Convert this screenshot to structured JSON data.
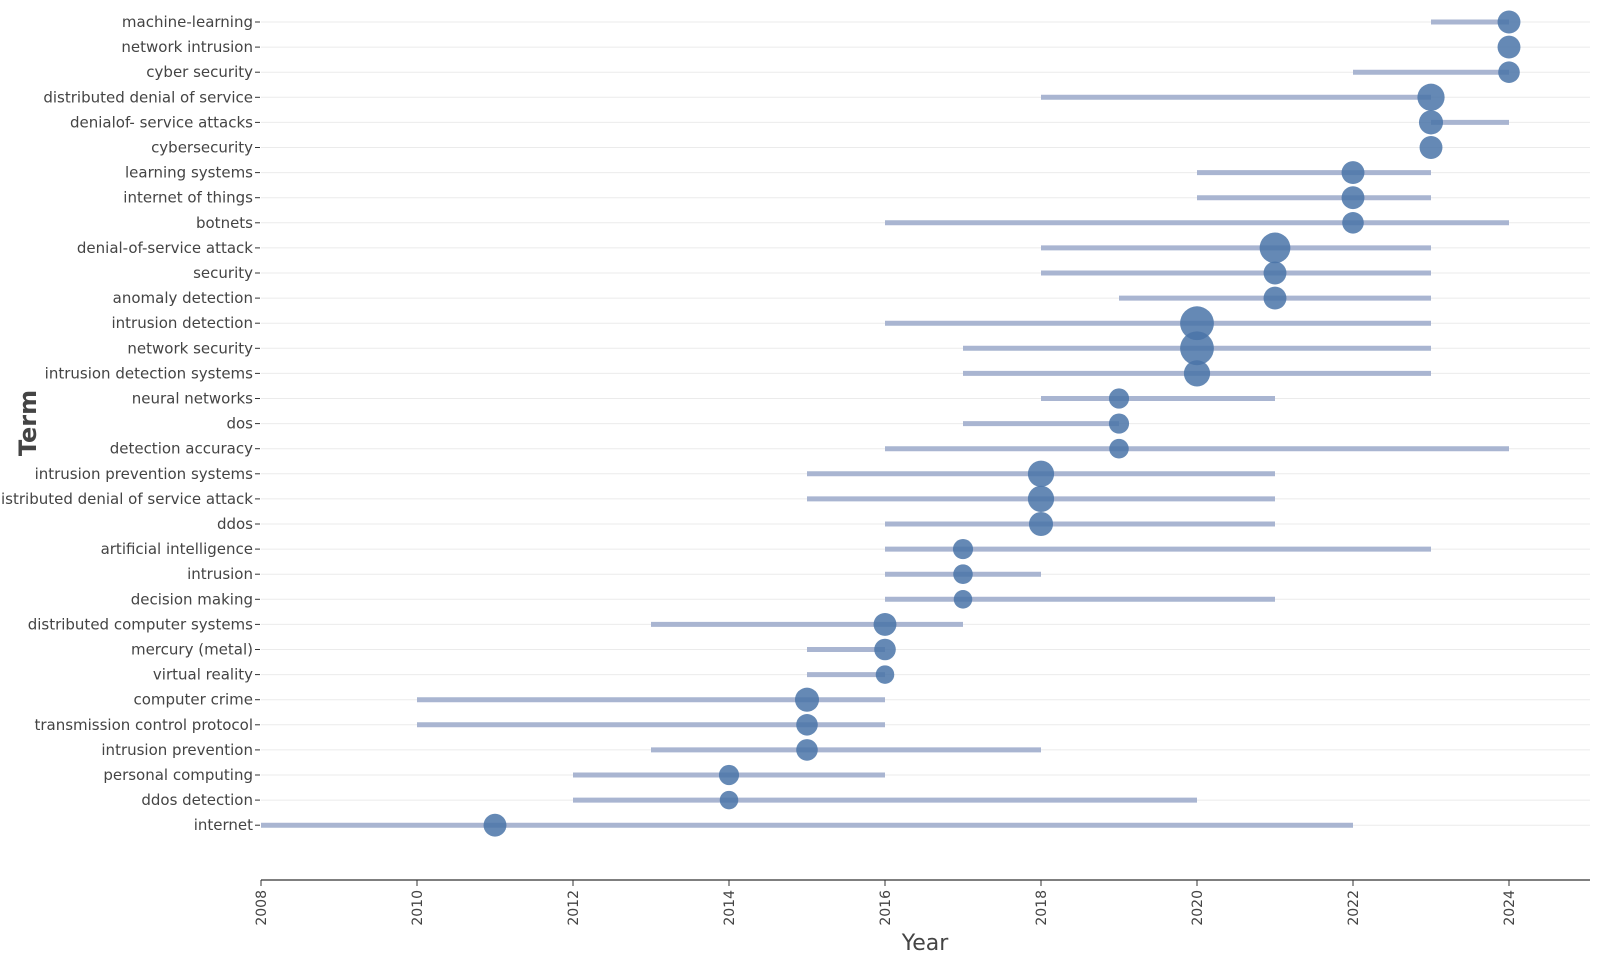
{
  "chart_data": {
    "type": "scatter",
    "xlabel": "Year",
    "ylabel": "Term",
    "xlim": [
      2008,
      2025
    ],
    "x_ticks": [
      "2008",
      "2010",
      "2012",
      "2014",
      "2016",
      "2018",
      "2020",
      "2022",
      "2024"
    ],
    "grid": true,
    "legend": "none",
    "colors": {
      "point": "#4a74a8",
      "range": "#a9b5d1",
      "grid": "#ebebeb",
      "axis": "#333333"
    },
    "terms": [
      {
        "term": "machine-learning",
        "start": 2023,
        "end": 2024,
        "peak": 2024,
        "freq": 3
      },
      {
        "term": "network intrusion",
        "start": 2024,
        "end": 2024,
        "peak": 2024,
        "freq": 3
      },
      {
        "term": "cyber security",
        "start": 2022,
        "end": 2024,
        "peak": 2024,
        "freq": 2.5
      },
      {
        "term": "distributed denial of service",
        "start": 2018,
        "end": 2023,
        "peak": 2023,
        "freq": 5
      },
      {
        "term": "denialof- service attacks",
        "start": 2023,
        "end": 2024,
        "peak": 2023,
        "freq": 3.5
      },
      {
        "term": "cybersecurity",
        "start": 2023,
        "end": 2023,
        "peak": 2023,
        "freq": 3
      },
      {
        "term": "learning systems",
        "start": 2020,
        "end": 2023,
        "peak": 2022,
        "freq": 3
      },
      {
        "term": "internet of things",
        "start": 2020,
        "end": 2023,
        "peak": 2022,
        "freq": 3
      },
      {
        "term": "botnets",
        "start": 2016,
        "end": 2024,
        "peak": 2022,
        "freq": 2.5
      },
      {
        "term": "denial-of-service attack",
        "start": 2018,
        "end": 2023,
        "peak": 2021,
        "freq": 7
      },
      {
        "term": "security",
        "start": 2018,
        "end": 2023,
        "peak": 2021,
        "freq": 3
      },
      {
        "term": "anomaly detection",
        "start": 2019,
        "end": 2023,
        "peak": 2021,
        "freq": 3
      },
      {
        "term": "intrusion detection",
        "start": 2016,
        "end": 2023,
        "peak": 2020,
        "freq": 9
      },
      {
        "term": "network security",
        "start": 2017,
        "end": 2023,
        "peak": 2020,
        "freq": 9
      },
      {
        "term": "intrusion detection systems",
        "start": 2017,
        "end": 2023,
        "peak": 2020,
        "freq": 4.5
      },
      {
        "term": "neural networks",
        "start": 2018,
        "end": 2021,
        "peak": 2019,
        "freq": 2
      },
      {
        "term": "dos",
        "start": 2017,
        "end": 2019,
        "peak": 2019,
        "freq": 2
      },
      {
        "term": "detection accuracy",
        "start": 2016,
        "end": 2024,
        "peak": 2019,
        "freq": 1.8
      },
      {
        "term": "intrusion prevention systems",
        "start": 2015,
        "end": 2021,
        "peak": 2018,
        "freq": 4.5
      },
      {
        "term": "distributed denial of service attack",
        "start": 2015,
        "end": 2021,
        "peak": 2018,
        "freq": 4.5
      },
      {
        "term": "ddos",
        "start": 2016,
        "end": 2021,
        "peak": 2018,
        "freq": 3.5
      },
      {
        "term": "artificial intelligence",
        "start": 2016,
        "end": 2023,
        "peak": 2017,
        "freq": 2
      },
      {
        "term": "intrusion",
        "start": 2016,
        "end": 2018,
        "peak": 2017,
        "freq": 1.8
      },
      {
        "term": "decision making",
        "start": 2016,
        "end": 2021,
        "peak": 2017,
        "freq": 1.5
      },
      {
        "term": "distributed computer systems",
        "start": 2013,
        "end": 2017,
        "peak": 2016,
        "freq": 3
      },
      {
        "term": "mercury (metal)",
        "start": 2015,
        "end": 2016,
        "peak": 2016,
        "freq": 2.5
      },
      {
        "term": "virtual reality",
        "start": 2015,
        "end": 2016,
        "peak": 2016,
        "freq": 1.5
      },
      {
        "term": "computer crime",
        "start": 2010,
        "end": 2016,
        "peak": 2015,
        "freq": 3.5
      },
      {
        "term": "transmission control protocol",
        "start": 2010,
        "end": 2016,
        "peak": 2015,
        "freq": 2.5
      },
      {
        "term": "intrusion prevention",
        "start": 2013,
        "end": 2018,
        "peak": 2015,
        "freq": 2.5
      },
      {
        "term": "personal computing",
        "start": 2012,
        "end": 2016,
        "peak": 2014,
        "freq": 2
      },
      {
        "term": "ddos detection",
        "start": 2012,
        "end": 2020,
        "peak": 2014,
        "freq": 1.5
      },
      {
        "term": "internet",
        "start": 2008,
        "end": 2022,
        "peak": 2011,
        "freq": 3
      }
    ]
  }
}
